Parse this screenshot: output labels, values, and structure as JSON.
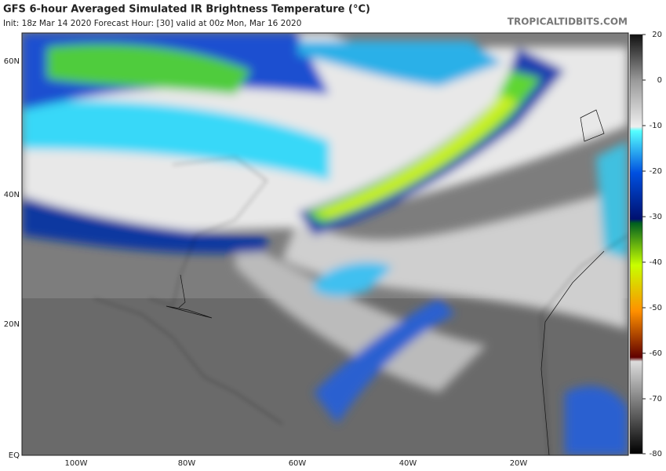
{
  "header": {
    "title": "GFS 6-hour Averaged Simulated IR Brightness Temperature (°C)",
    "subtitle": "Init: 18z Mar 14 2020   Forecast Hour: [30]   valid at 00z Mon, Mar 16 2020",
    "credit": "TROPICALTIDBITS.COM"
  },
  "map": {
    "lat_labels": [
      "60N",
      "40N",
      "20N",
      "EQ"
    ],
    "lon_labels": [
      "100W",
      "80W",
      "60W",
      "40W",
      "20W"
    ]
  },
  "colorbar": {
    "ticks": [
      20,
      0,
      -10,
      -20,
      -30,
      -40,
      -50,
      -60,
      -70,
      -80
    ]
  }
}
